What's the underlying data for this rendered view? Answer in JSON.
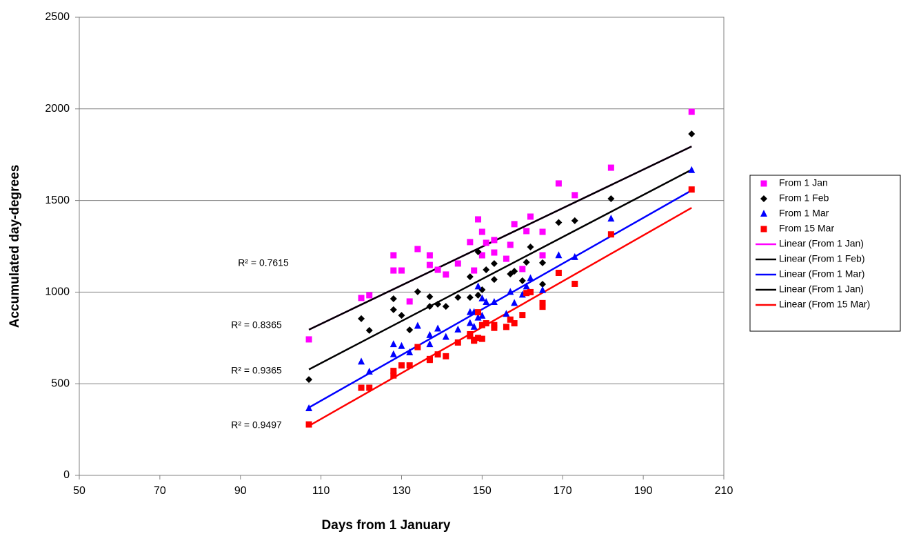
{
  "chart_data": {
    "type": "scatter",
    "x_label": "Days from 1 January",
    "y_label": "Accumulated day-degrees",
    "xlim": [
      50,
      210
    ],
    "xticks": [
      50,
      70,
      90,
      110,
      130,
      150,
      170,
      190,
      210
    ],
    "ylim": [
      0,
      2500
    ],
    "yticks": [
      0,
      500,
      1000,
      1500,
      2000,
      2500
    ],
    "grid": true,
    "legend": "right",
    "series": [
      {
        "name": "From 1 Jan",
        "color": "#ff00ff",
        "marker": "square",
        "x": [
          107,
          120,
          122,
          128,
          128,
          130,
          132,
          134,
          137,
          137,
          139,
          141,
          144,
          147,
          148,
          149,
          150,
          150,
          151,
          153,
          153,
          156,
          157,
          158,
          160,
          161,
          162,
          165,
          165,
          169,
          173,
          182,
          202
        ],
        "values": [
          742,
          968,
          983,
          1201,
          1118,
          1118,
          949,
          1235,
          1201,
          1148,
          1122,
          1096,
          1156,
          1273,
          1118,
          1397,
          1329,
          1201,
          1269,
          1216,
          1284,
          1182,
          1258,
          1371,
          1126,
          1333,
          1412,
          1329,
          1201,
          1593,
          1529,
          1679,
          1984
        ]
      },
      {
        "name": "From 1 Feb",
        "color": "#000000",
        "marker": "diamond",
        "x": [
          107,
          120,
          122,
          128,
          128,
          130,
          132,
          134,
          137,
          137,
          139,
          141,
          144,
          147,
          147,
          149,
          149,
          150,
          151,
          153,
          153,
          157,
          158,
          160,
          161,
          162,
          165,
          165,
          169,
          173,
          182,
          202
        ],
        "values": [
          523,
          855,
          791,
          964,
          904,
          873,
          794,
          1002,
          975,
          922,
          934,
          922,
          971,
          1084,
          971,
          1220,
          983,
          1013,
          1122,
          1156,
          1069,
          1099,
          1114,
          1062,
          1163,
          1246,
          1160,
          1043,
          1380,
          1390,
          1510,
          1863
        ]
      },
      {
        "name": "From 1 Mar",
        "color": "#0000ff",
        "marker": "triangle",
        "x": [
          107,
          120,
          122,
          128,
          128,
          130,
          132,
          134,
          137,
          137,
          139,
          141,
          144,
          147,
          147,
          148,
          148,
          149,
          149,
          150,
          150,
          151,
          153,
          156,
          157,
          158,
          160,
          161,
          162,
          165,
          169,
          173,
          182,
          202
        ],
        "values": [
          365,
          620,
          565,
          715,
          660,
          705,
          670,
          815,
          765,
          715,
          800,
          755,
          795,
          830,
          890,
          810,
          890,
          1030,
          860,
          965,
          870,
          945,
          945,
          880,
          1000,
          940,
          985,
          1030,
          1075,
          1010,
          1200,
          1190,
          1400,
          1665
        ]
      },
      {
        "name": "From 15 Mar",
        "color": "#ff0000",
        "marker": "square",
        "x": [
          107,
          120,
          122,
          128,
          128,
          130,
          132,
          134,
          137,
          137,
          139,
          141,
          144,
          147,
          147,
          148,
          148,
          149,
          149,
          150,
          150,
          151,
          153,
          153,
          156,
          157,
          158,
          160,
          161,
          162,
          165,
          165,
          169,
          173,
          182,
          202
        ],
        "values": [
          278,
          478,
          478,
          570,
          545,
          600,
          600,
          700,
          635,
          630,
          660,
          650,
          725,
          760,
          770,
          735,
          740,
          750,
          890,
          745,
          820,
          830,
          820,
          805,
          810,
          850,
          830,
          875,
          995,
          1000,
          940,
          920,
          1105,
          1045,
          1315,
          1560
        ]
      }
    ],
    "trendlines": [
      {
        "name": "Linear (From 1 Jan)",
        "color": "#ff00ff",
        "x": [
          107,
          202
        ],
        "values": [
          795,
          1795
        ],
        "r2_label": "R² = 0.7615"
      },
      {
        "name": "Linear (From 1 Feb)",
        "color": "#000000",
        "x": [
          107,
          202
        ],
        "values": [
          578,
          1668
        ],
        "r2_label": "R² = 0.8365"
      },
      {
        "name": "Linear (From 1 Mar)",
        "color": "#0000ff",
        "x": [
          107,
          202
        ],
        "values": [
          370,
          1555
        ],
        "r2_label": "R² = 0.9365"
      },
      {
        "name": "Linear (From 1 Jan)",
        "color": "#000000",
        "x": [
          107,
          202
        ],
        "values": [
          795,
          1795
        ]
      },
      {
        "name": "Linear (From 15 Mar)",
        "color": "#ff0000",
        "x": [
          107,
          202
        ],
        "values": [
          270,
          1460
        ],
        "r2_label": "R² = 0.9497"
      }
    ]
  }
}
